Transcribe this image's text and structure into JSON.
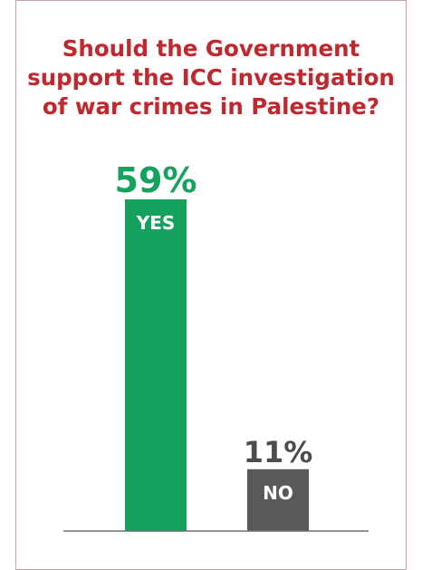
{
  "title_lines": [
    "Should the Government",
    "support the ICC investigation",
    "of war crimes in Palestine?"
  ],
  "colors": {
    "title": "#c0282f",
    "yes": "#15a15e",
    "no": "#58595b",
    "percent_no": "#4d4d4f",
    "axis": "#6d6e70",
    "border": "#c9a3a8"
  },
  "chart_data": {
    "type": "bar",
    "title": "Should the Government support the ICC investigation of war crimes in Palestine?",
    "categories": [
      "YES",
      "NO"
    ],
    "values": [
      59,
      11
    ],
    "value_labels": [
      "59%",
      "11%"
    ],
    "unit": "%",
    "ylim": [
      0,
      59
    ],
    "grid": false,
    "legend": "none"
  }
}
